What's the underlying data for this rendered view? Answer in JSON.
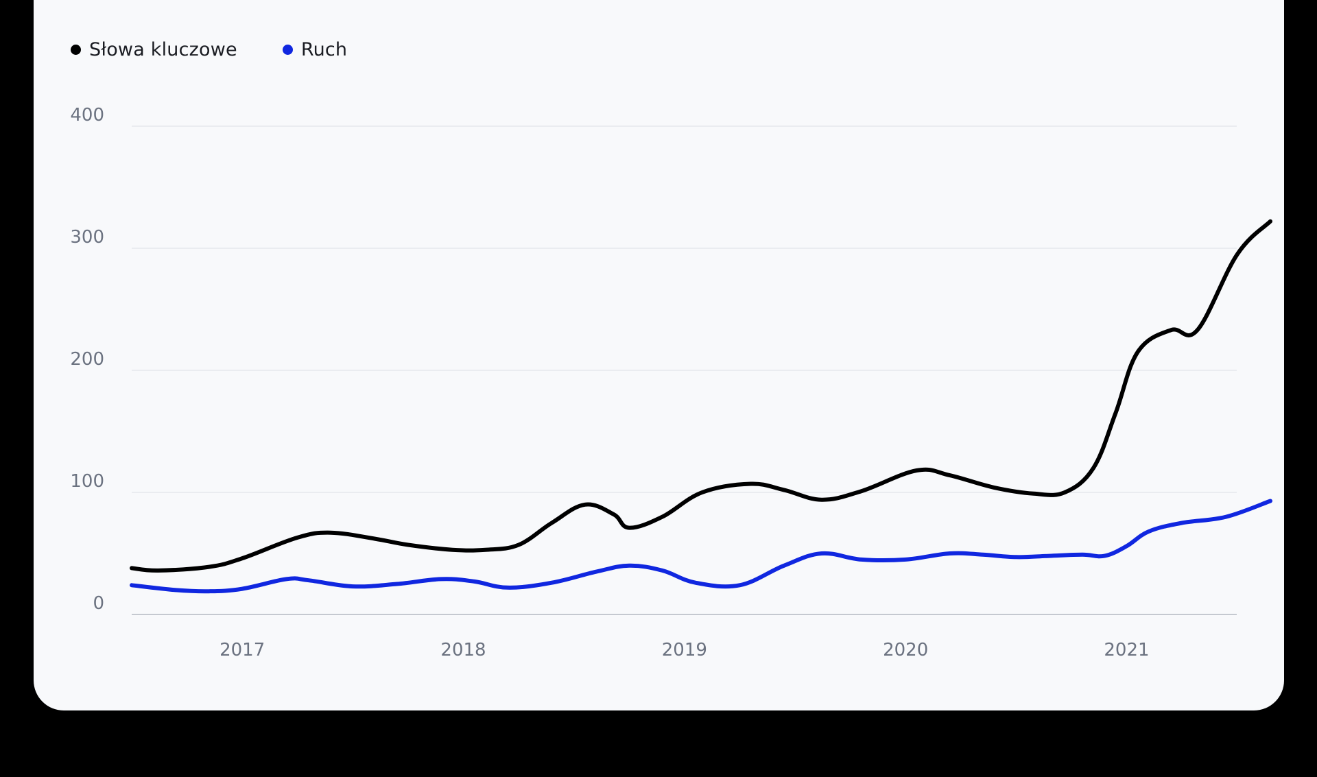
{
  "colors": {
    "background": "#000000",
    "card": "#f8f9fb",
    "grid": "#e6e8ec",
    "axis": "#c5c9d0",
    "tick_text": "#6b7280"
  },
  "chart_data": {
    "type": "line",
    "title": "",
    "xlabel": "",
    "ylabel": "",
    "ylim": [
      0,
      400
    ],
    "yticks": [
      0,
      100,
      200,
      300,
      400
    ],
    "xticks": [
      "2017",
      "2018",
      "2019",
      "2020",
      "2021"
    ],
    "xlim": [
      2016.5,
      2021.65
    ],
    "grid": true,
    "legend_position": "top-left",
    "series": [
      {
        "name": "Słowa kluczowe",
        "color": "#000000",
        "x": [
          2016.5,
          2016.62,
          2016.85,
          2017.0,
          2017.25,
          2017.4,
          2017.6,
          2017.75,
          2017.95,
          2018.1,
          2018.25,
          2018.4,
          2018.55,
          2018.68,
          2018.75,
          2018.9,
          2019.08,
          2019.3,
          2019.45,
          2019.62,
          2019.8,
          2020.05,
          2020.2,
          2020.4,
          2020.58,
          2020.72,
          2020.85,
          2020.95,
          2021.05,
          2021.2,
          2021.32,
          2021.5,
          2021.65
        ],
        "y": [
          38,
          36,
          39,
          46,
          63,
          67,
          62,
          57,
          53,
          53,
          57,
          75,
          90,
          82,
          71,
          80,
          100,
          107,
          102,
          94,
          101,
          118,
          114,
          104,
          99,
          100,
          120,
          165,
          215,
          233,
          233,
          295,
          322
        ]
      },
      {
        "name": "Ruch",
        "color": "#1027e0",
        "x": [
          2016.5,
          2016.7,
          2016.85,
          2017.0,
          2017.2,
          2017.3,
          2017.5,
          2017.7,
          2017.9,
          2018.05,
          2018.2,
          2018.4,
          2018.6,
          2018.75,
          2018.9,
          2019.05,
          2019.25,
          2019.45,
          2019.62,
          2019.8,
          2020.0,
          2020.2,
          2020.35,
          2020.5,
          2020.65,
          2020.8,
          2020.9,
          2021.0,
          2021.1,
          2021.25,
          2021.45,
          2021.65
        ],
        "y": [
          24,
          20,
          19,
          21,
          29,
          28,
          23,
          25,
          29,
          27,
          22,
          26,
          35,
          40,
          36,
          26,
          24,
          40,
          50,
          45,
          45,
          50,
          49,
          47,
          48,
          49,
          48,
          56,
          68,
          75,
          80,
          93
        ]
      }
    ]
  }
}
